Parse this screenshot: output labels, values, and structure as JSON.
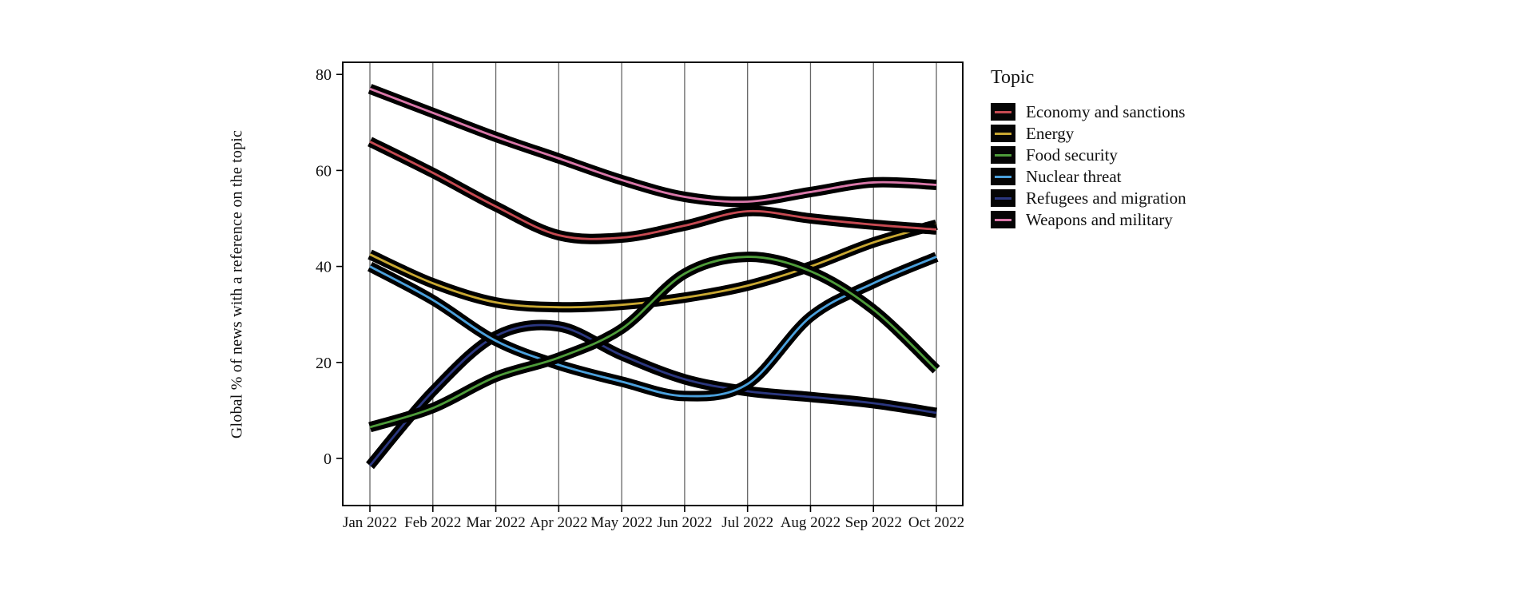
{
  "page": {
    "background_color": "#ffffff"
  },
  "chart_data": {
    "type": "line",
    "style": "smoothed lines with thick black outline and thin colored core",
    "title": "",
    "xlabel": "",
    "ylabel": "Global % of news with a reference on the topic",
    "categories": [
      "Jan 2022",
      "Feb 2022",
      "Mar 2022",
      "Apr 2022",
      "May 2022",
      "Jun 2022",
      "Jul 2022",
      "Aug 2022",
      "Sep 2022",
      "Oct 2022"
    ],
    "y_ticks": [
      0,
      20,
      40,
      60,
      80
    ],
    "ylim": [
      -10,
      82.5
    ],
    "grid": "vertical gridlines at each month only",
    "legend_title": "Topic",
    "legend_position": "right",
    "axis_color": "#000000",
    "gridline_color": "#666666",
    "outline_color": "#000000",
    "series": [
      {
        "name": "Economy and sanctions",
        "color": "#c64a52",
        "values": [
          66,
          59.5,
          52.5,
          46.5,
          46,
          48.5,
          51.5,
          50,
          48.7,
          47.7
        ]
      },
      {
        "name": "Energy",
        "color": "#c9a832",
        "values": [
          42.5,
          36.5,
          32.5,
          31.5,
          32,
          33.5,
          36,
          40,
          45,
          48.7
        ]
      },
      {
        "name": "Food security",
        "color": "#4e9c3a",
        "values": [
          6.5,
          10.5,
          17,
          21,
          27,
          38.5,
          42,
          39,
          31,
          18.5
        ]
      },
      {
        "name": "Nuclear threat",
        "color": "#4aa0dc",
        "values": [
          40,
          33,
          24.5,
          19.5,
          16,
          13,
          15.5,
          29.5,
          36.5,
          42
        ]
      },
      {
        "name": "Refugees and migration",
        "color": "#2b3780",
        "values": [
          -1.5,
          14,
          25.5,
          27.5,
          21.5,
          16.5,
          14,
          12.8,
          11.5,
          9.5
        ]
      },
      {
        "name": "Weapons and military",
        "color": "#d977a9",
        "values": [
          77,
          72,
          67,
          62.5,
          58,
          54.5,
          53.5,
          55.5,
          57.5,
          57
        ]
      }
    ]
  }
}
